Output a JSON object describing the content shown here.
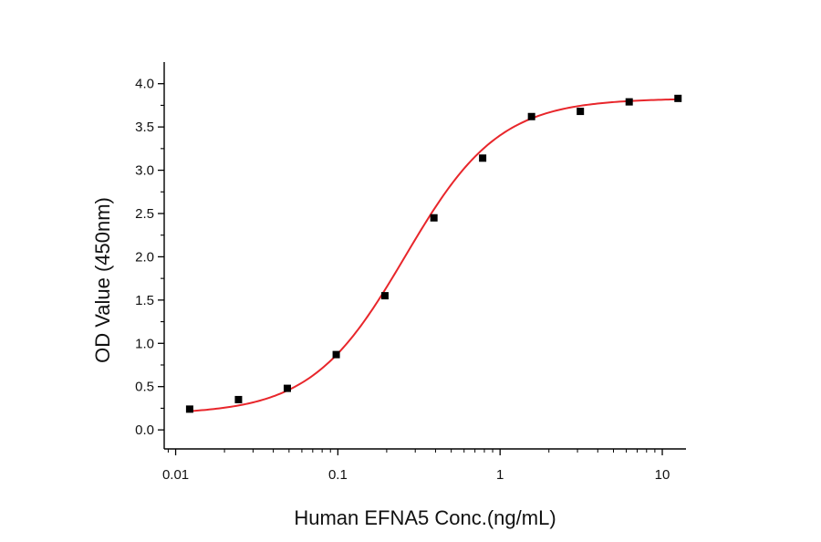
{
  "chart_data": {
    "type": "scatter",
    "xlabel": "Human EFNA5 Conc.(ng/mL)",
    "ylabel": "OD Value (450nm)",
    "xscale": "log",
    "xlim": [
      0.0085,
      14
    ],
    "ylim": [
      -0.22,
      4.25
    ],
    "x_ticks": [
      {
        "value": 0.01,
        "label": "0.01"
      },
      {
        "value": 0.1,
        "label": "0.1"
      },
      {
        "value": 1,
        "label": "1"
      },
      {
        "value": 10,
        "label": "10"
      }
    ],
    "y_ticks": [
      {
        "value": 0,
        "label": "0.0"
      },
      {
        "value": 0.5,
        "label": "0.5"
      },
      {
        "value": 1,
        "label": "1.0"
      },
      {
        "value": 1.5,
        "label": "1.5"
      },
      {
        "value": 2,
        "label": "2.0"
      },
      {
        "value": 2.5,
        "label": "2.5"
      },
      {
        "value": 3,
        "label": "3.0"
      },
      {
        "value": 3.5,
        "label": "3.5"
      },
      {
        "value": 4,
        "label": "4.0"
      }
    ],
    "series": [
      {
        "marker": "square",
        "color": "#000000",
        "x": [
          0.0122,
          0.0244,
          0.0488,
          0.0977,
          0.195,
          0.391,
          0.781,
          1.5625,
          3.125,
          6.25,
          12.5
        ],
        "y": [
          0.24,
          0.35,
          0.48,
          0.87,
          1.55,
          2.45,
          3.14,
          3.62,
          3.68,
          3.79,
          3.83
        ]
      }
    ],
    "fit": {
      "type": "4PL",
      "color": "#e8262b",
      "bottom": 0.18,
      "top": 3.83,
      "ec50": 0.26,
      "hill": 1.5
    }
  }
}
